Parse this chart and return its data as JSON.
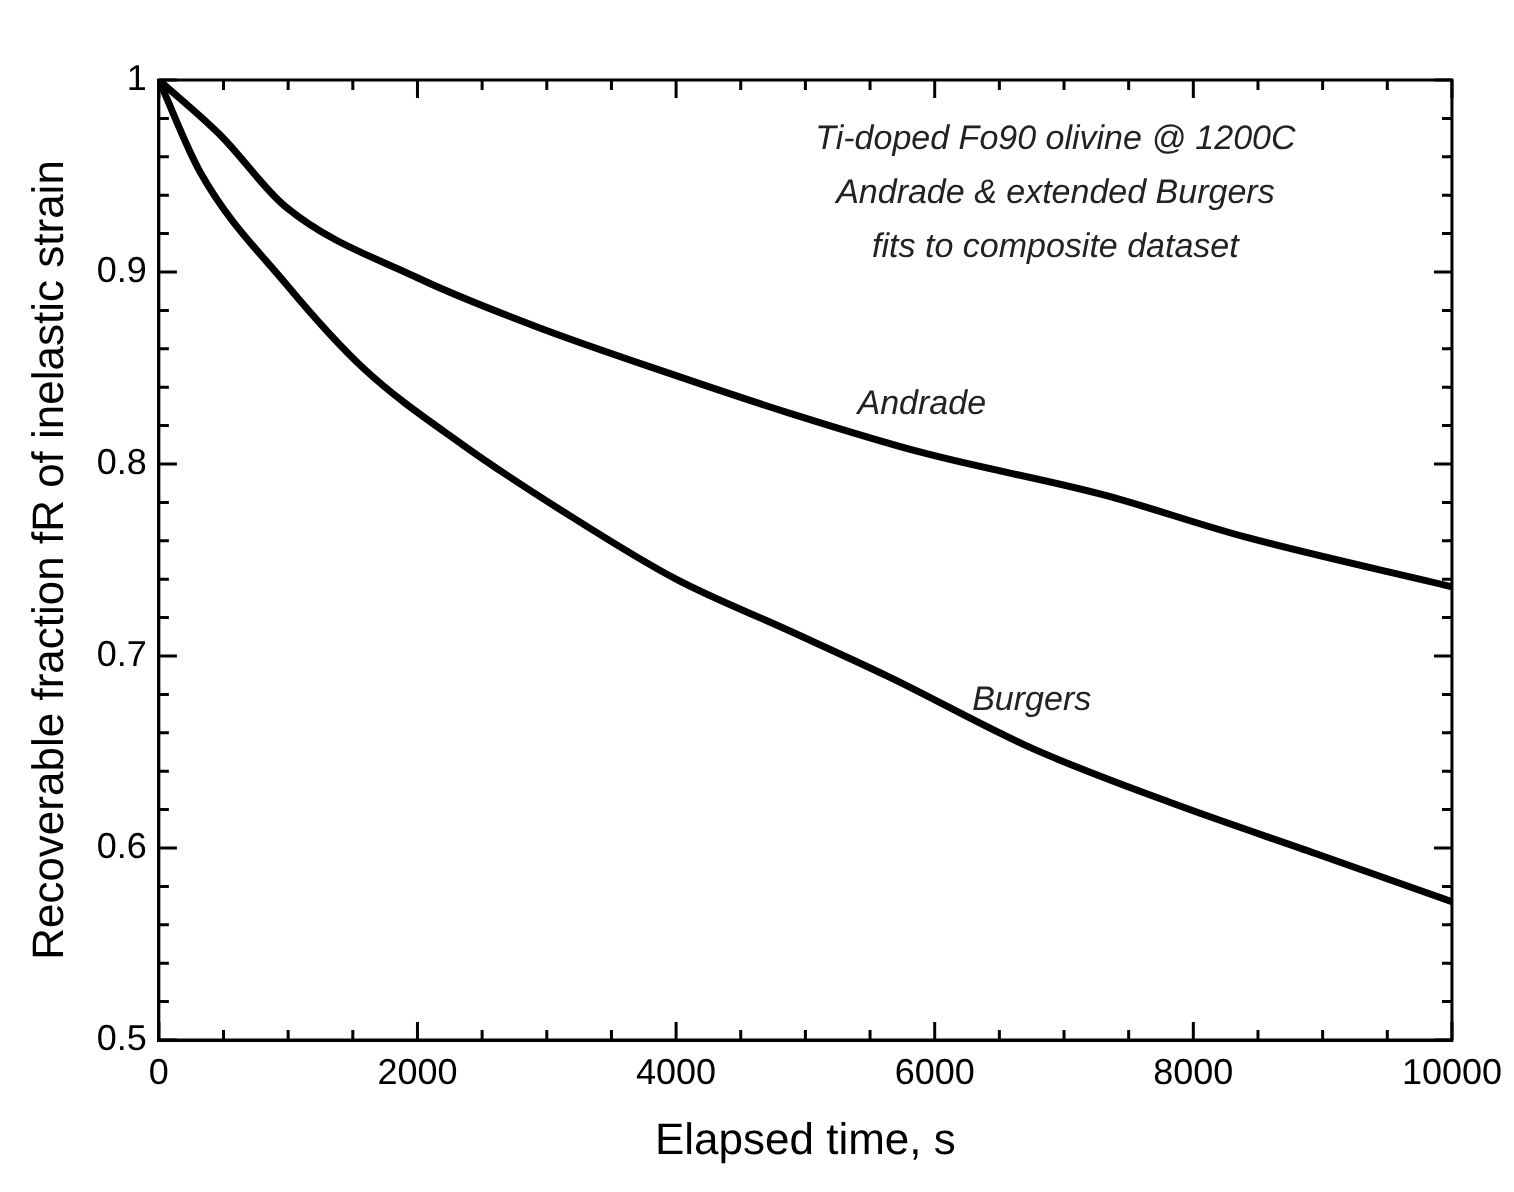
{
  "chart_data": {
    "type": "line",
    "xlabel": "Elapsed time, s",
    "ylabel": "Recoverable fraction fR of inelastic strain",
    "annotations": [
      "Ti-doped Fo90 olivine @ 1200C\nAndrade & extended Burgers\nfits to composite dataset"
    ],
    "xlim": [
      0,
      10000
    ],
    "ylim": [
      0.5,
      1
    ],
    "xticks": [
      0,
      {
        "value": 500,
        "label": null
      },
      {
        "value": 1000,
        "label": null
      },
      {
        "value": 1500,
        "label": null
      },
      2000,
      {
        "value": 2500,
        "label": null
      },
      {
        "value": 3000,
        "label": null
      },
      {
        "value": 3500,
        "label": null
      },
      4000,
      {
        "value": 4500,
        "label": null
      },
      {
        "value": 5000,
        "label": null
      },
      {
        "value": 5500,
        "label": null
      },
      6000,
      {
        "value": 6500,
        "label": null
      },
      {
        "value": 7000,
        "label": null
      },
      {
        "value": 7500,
        "label": null
      },
      8000,
      {
        "value": 8500,
        "label": null
      },
      {
        "value": 9000,
        "label": null
      },
      {
        "value": 9500,
        "label": null
      },
      10000
    ],
    "yticks": [
      0.5,
      {
        "value": 0.52,
        "label": null
      },
      {
        "value": 0.54,
        "label": null
      },
      {
        "value": 0.56,
        "label": null
      },
      {
        "value": 0.58,
        "label": null
      },
      0.6,
      {
        "value": 0.62,
        "label": null
      },
      {
        "value": 0.64,
        "label": null
      },
      {
        "value": 0.66,
        "label": null
      },
      {
        "value": 0.68,
        "label": null
      },
      0.7,
      {
        "value": 0.72,
        "label": null
      },
      {
        "value": 0.74,
        "label": null
      },
      {
        "value": 0.76,
        "label": null
      },
      {
        "value": 0.78,
        "label": null
      },
      0.8,
      {
        "value": 0.82,
        "label": null
      },
      {
        "value": 0.84,
        "label": null
      },
      {
        "value": 0.86,
        "label": null
      },
      {
        "value": 0.88,
        "label": null
      },
      0.9,
      {
        "value": 0.92,
        "label": null
      },
      {
        "value": 0.94,
        "label": null
      },
      {
        "value": 0.96,
        "label": null
      },
      {
        "value": 0.98,
        "label": null
      },
      1
    ],
    "grid": false,
    "legend": false,
    "marker": "none",
    "line_style": "solid",
    "series": [
      {
        "name": "Andrade",
        "color": "#000000",
        "x": [
          0,
          480,
          980,
          2000,
          2900,
          4000,
          4900,
          5900,
          7300,
          8400,
          10000
        ],
        "values": [
          1,
          0.971,
          0.934,
          0.897,
          0.872,
          0.846,
          0.826,
          0.806,
          0.784,
          0.762,
          0.736
        ]
      },
      {
        "name": "Burgers",
        "color": "#000000",
        "x": [
          0,
          320,
          980,
          1580,
          2350,
          3180,
          4000,
          4880,
          5650,
          6750,
          7850,
          8950,
          10000
        ],
        "values": [
          1,
          0.952,
          0.894,
          0.85,
          0.81,
          0.773,
          0.74,
          0.713,
          0.689,
          0.652,
          0.623,
          0.597,
          0.572
        ]
      }
    ]
  }
}
